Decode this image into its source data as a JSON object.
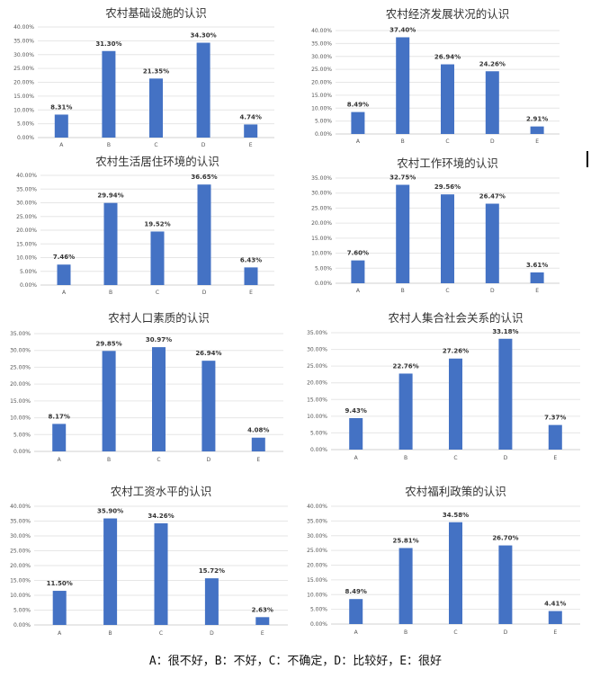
{
  "chart_data": [
    {
      "type": "bar",
      "title": "农村基础设施的认识",
      "categories": [
        "A",
        "B",
        "C",
        "D",
        "E"
      ],
      "values": [
        8.31,
        31.3,
        21.35,
        34.3,
        4.74
      ],
      "data_labels": [
        "8.31%",
        "31.30%",
        "21.35%",
        "34.30%",
        "4.74%"
      ],
      "ylim": [
        0,
        40
      ],
      "yticks": [
        "0.00%",
        "5.00%",
        "10.00%",
        "15.00%",
        "20.00%",
        "25.00%",
        "30.00%",
        "35.00%",
        "40.00%"
      ],
      "grid": true
    },
    {
      "type": "bar",
      "title": "农村经济发展状况的认识",
      "categories": [
        "A",
        "B",
        "C",
        "D",
        "E"
      ],
      "values": [
        8.49,
        37.4,
        26.94,
        24.26,
        2.91
      ],
      "data_labels": [
        "8.49%",
        "37.40%",
        "26.94%",
        "24.26%",
        "2.91%"
      ],
      "ylim": [
        0,
        40
      ],
      "yticks": [
        "0.00%",
        "5.00%",
        "10.00%",
        "15.00%",
        "20.00%",
        "25.00%",
        "30.00%",
        "35.00%",
        "40.00%"
      ],
      "grid": true
    },
    {
      "type": "bar",
      "title": "农村生活居住环境的认识",
      "categories": [
        "A",
        "B",
        "C",
        "D",
        "E"
      ],
      "values": [
        7.46,
        29.94,
        19.52,
        36.65,
        6.43
      ],
      "data_labels": [
        "7.46%",
        "29.94%",
        "19.52%",
        "36.65%",
        "6.43%"
      ],
      "ylim": [
        0,
        40
      ],
      "yticks": [
        "0.00%",
        "5.00%",
        "10.00%",
        "15.00%",
        "20.00%",
        "25.00%",
        "30.00%",
        "35.00%",
        "40.00%"
      ],
      "grid": true
    },
    {
      "type": "bar",
      "title": "农村工作环境的认识",
      "categories": [
        "A",
        "B",
        "C",
        "D",
        "E"
      ],
      "values": [
        7.6,
        32.75,
        29.56,
        26.47,
        3.61
      ],
      "data_labels": [
        "7.60%",
        "32.75%",
        "29.56%",
        "26.47%",
        "3.61%"
      ],
      "ylim": [
        0,
        35
      ],
      "yticks": [
        "0.00%",
        "5.00%",
        "10.00%",
        "15.00%",
        "20.00%",
        "25.00%",
        "30.00%",
        "35.00%"
      ],
      "grid": true
    },
    {
      "type": "bar",
      "title": "农村人口素质的认识",
      "categories": [
        "A",
        "B",
        "C",
        "D",
        "E"
      ],
      "values": [
        8.17,
        29.85,
        30.97,
        26.94,
        4.08
      ],
      "data_labels": [
        "8.17%",
        "29.85%",
        "30.97%",
        "26.94%",
        "4.08%"
      ],
      "ylim": [
        0,
        35
      ],
      "yticks": [
        "0.00%",
        "5.00%",
        "10.00%",
        "15.00%",
        "20.00%",
        "25.00%",
        "30.00%",
        "35.00%"
      ],
      "grid": true
    },
    {
      "type": "bar",
      "title": "农村人集合社会关系的认识",
      "categories": [
        "A",
        "B",
        "C",
        "D",
        "E"
      ],
      "values": [
        9.43,
        22.76,
        27.26,
        33.18,
        7.37
      ],
      "data_labels": [
        "9.43%",
        "22.76%",
        "27.26%",
        "33.18%",
        "7.37%"
      ],
      "ylim": [
        0,
        35
      ],
      "yticks": [
        "0.00%",
        "5.00%",
        "10.00%",
        "15.00%",
        "20.00%",
        "25.00%",
        "30.00%",
        "35.00%"
      ],
      "grid": true
    },
    {
      "type": "bar",
      "title": "农村工资水平的认识",
      "categories": [
        "A",
        "B",
        "C",
        "D",
        "E"
      ],
      "values": [
        11.5,
        35.9,
        34.26,
        15.72,
        2.63
      ],
      "data_labels": [
        "11.50%",
        "35.90%",
        "34.26%",
        "15.72%",
        "2.63%"
      ],
      "ylim": [
        0,
        40
      ],
      "yticks": [
        "0.00%",
        "5.00%",
        "10.00%",
        "15.00%",
        "20.00%",
        "25.00%",
        "30.00%",
        "35.00%",
        "40.00%"
      ],
      "grid": true
    },
    {
      "type": "bar",
      "title": "农村福利政策的认识",
      "categories": [
        "A",
        "B",
        "C",
        "D",
        "E"
      ],
      "values": [
        8.49,
        25.81,
        34.58,
        26.7,
        4.41
      ],
      "data_labels": [
        "8.49%",
        "25.81%",
        "34.58%",
        "26.70%",
        "4.41%"
      ],
      "ylim": [
        0,
        40
      ],
      "yticks": [
        "0.00%",
        "5.00%",
        "10.00%",
        "15.00%",
        "20.00%",
        "25.00%",
        "30.00%",
        "35.00%",
        "40.00%"
      ],
      "grid": true
    }
  ],
  "bar_color": "#4472C4",
  "legend": "A：很不好，B：不好，C：不确定，D：比较好，E：很好"
}
